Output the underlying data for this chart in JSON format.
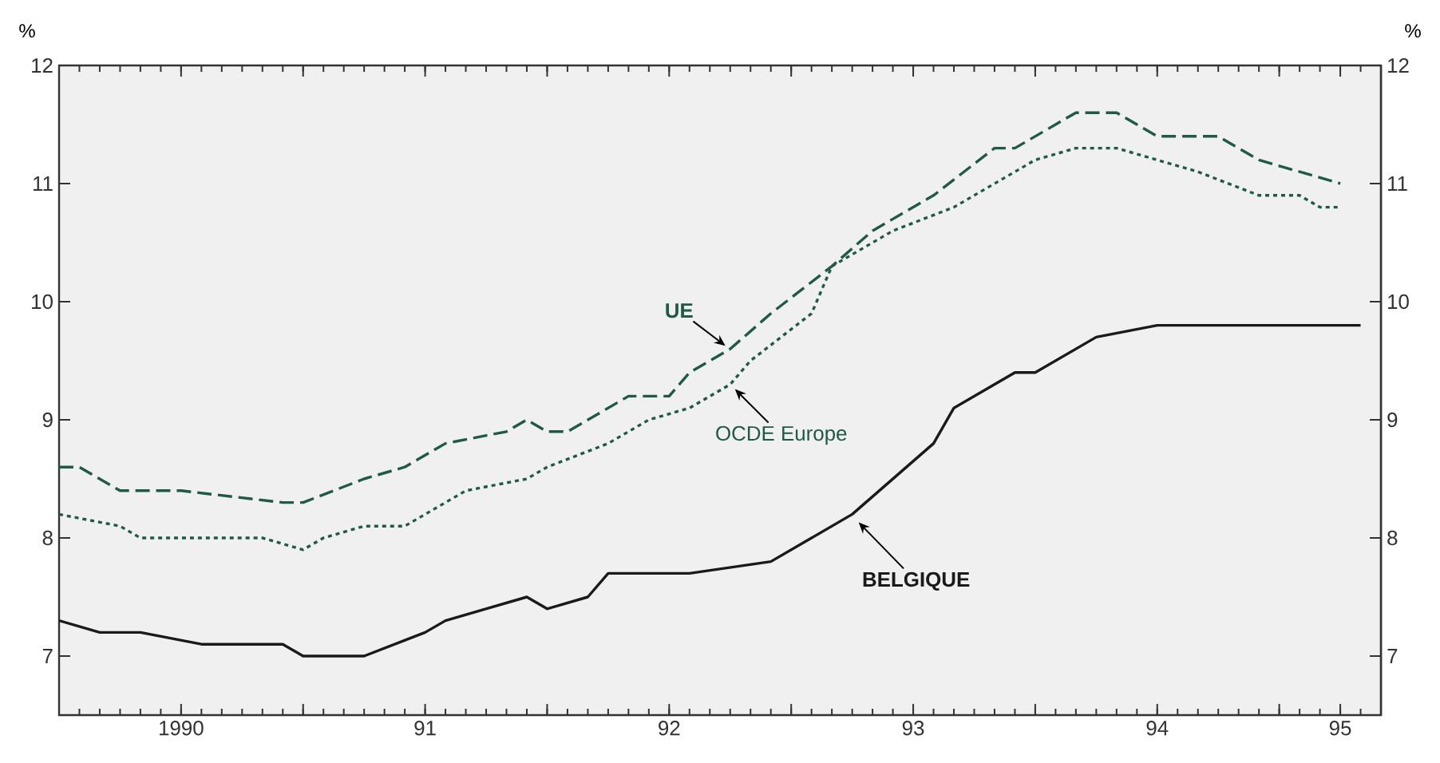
{
  "chart_data": {
    "type": "line",
    "ylabel": "%",
    "y2label": "%",
    "xlim": [
      "1990-01",
      "1995-06"
    ],
    "ylim": [
      6.5,
      12
    ],
    "y2lim": [
      6.5,
      12
    ],
    "xticks": [
      {
        "value": "1990-07",
        "label": "1990"
      },
      {
        "value": "1991-01",
        "label": null
      },
      {
        "value": "1991-07",
        "label": "91"
      },
      {
        "value": "1992-01",
        "label": null
      },
      {
        "value": "1992-07",
        "label": "92"
      },
      {
        "value": "1993-01",
        "label": null
      },
      {
        "value": "1993-07",
        "label": "93"
      },
      {
        "value": "1994-01",
        "label": null
      },
      {
        "value": "1994-07",
        "label": "94"
      },
      {
        "value": "1995-01",
        "label": null
      },
      {
        "value": "1995-04",
        "label": "95"
      }
    ],
    "yticks": [
      7,
      8,
      9,
      10,
      11,
      12
    ],
    "y2ticks": [
      7,
      8,
      9,
      10,
      11,
      12
    ],
    "grid": false,
    "marker": "none",
    "series": [
      {
        "name": "UE",
        "color": "#1f5a45",
        "line_style": "dashed",
        "x": [
          "1990-01",
          "1990-02",
          "1990-04",
          "1990-07",
          "1990-12",
          "1991-01",
          "1991-04",
          "1991-06",
          "1991-08",
          "1991-11",
          "1991-12",
          "1992-01",
          "1992-02",
          "1992-05",
          "1992-07",
          "1992-08",
          "1992-10",
          "1992-12",
          "1993-03",
          "1993-05",
          "1993-06",
          "1993-08",
          "1993-11",
          "1993-12",
          "1994-02",
          "1994-03",
          "1994-05",
          "1994-07",
          "1994-10",
          "1994-12",
          "1995-02",
          "1995-04"
        ],
        "values": [
          8.6,
          8.6,
          8.4,
          8.4,
          8.3,
          8.3,
          8.5,
          8.6,
          8.8,
          8.9,
          9.0,
          8.9,
          8.9,
          9.2,
          9.2,
          9.4,
          9.6,
          9.9,
          10.3,
          10.6,
          10.7,
          10.9,
          11.3,
          11.3,
          11.5,
          11.6,
          11.6,
          11.4,
          11.4,
          11.2,
          11.1,
          11.0
        ]
      },
      {
        "name": "OCDE Europe",
        "color": "#1f5a45",
        "line_style": "dotted",
        "x": [
          "1990-01",
          "1990-04",
          "1990-05",
          "1990-11",
          "1991-01",
          "1991-02",
          "1991-04",
          "1991-06",
          "1991-09",
          "1991-12",
          "1992-01",
          "1992-04",
          "1992-06",
          "1992-08",
          "1992-10",
          "1992-11",
          "1993-02",
          "1993-03",
          "1993-06",
          "1993-09",
          "1993-11",
          "1994-01",
          "1994-03",
          "1994-05",
          "1994-07",
          "1994-09",
          "1994-12",
          "1995-02",
          "1995-03",
          "1995-04"
        ],
        "values": [
          8.2,
          8.1,
          8.0,
          8.0,
          7.9,
          8.0,
          8.1,
          8.1,
          8.4,
          8.5,
          8.6,
          8.8,
          9.0,
          9.1,
          9.3,
          9.5,
          9.9,
          10.3,
          10.6,
          10.8,
          11.0,
          11.2,
          11.3,
          11.3,
          11.2,
          11.1,
          10.9,
          10.9,
          10.8,
          10.8
        ]
      },
      {
        "name": "BELGIQUE",
        "color": "#1a1a1a",
        "line_style": "solid",
        "x": [
          "1990-01",
          "1990-03",
          "1990-05",
          "1990-08",
          "1990-12",
          "1991-01",
          "1991-04",
          "1991-07",
          "1991-08",
          "1991-12",
          "1992-01",
          "1992-03",
          "1992-04",
          "1992-06",
          "1992-08",
          "1992-12",
          "1993-02",
          "1993-04",
          "1993-08",
          "1993-09",
          "1993-12",
          "1994-01",
          "1994-04",
          "1994-07",
          "1994-11",
          "1995-01",
          "1995-02",
          "1995-05"
        ],
        "values": [
          7.3,
          7.2,
          7.2,
          7.1,
          7.1,
          7.0,
          7.0,
          7.2,
          7.3,
          7.5,
          7.4,
          7.5,
          7.7,
          7.7,
          7.7,
          7.8,
          8.0,
          8.2,
          8.8,
          9.1,
          9.4,
          9.4,
          9.7,
          9.8,
          9.8,
          9.8,
          9.8,
          9.8
        ]
      }
    ]
  }
}
